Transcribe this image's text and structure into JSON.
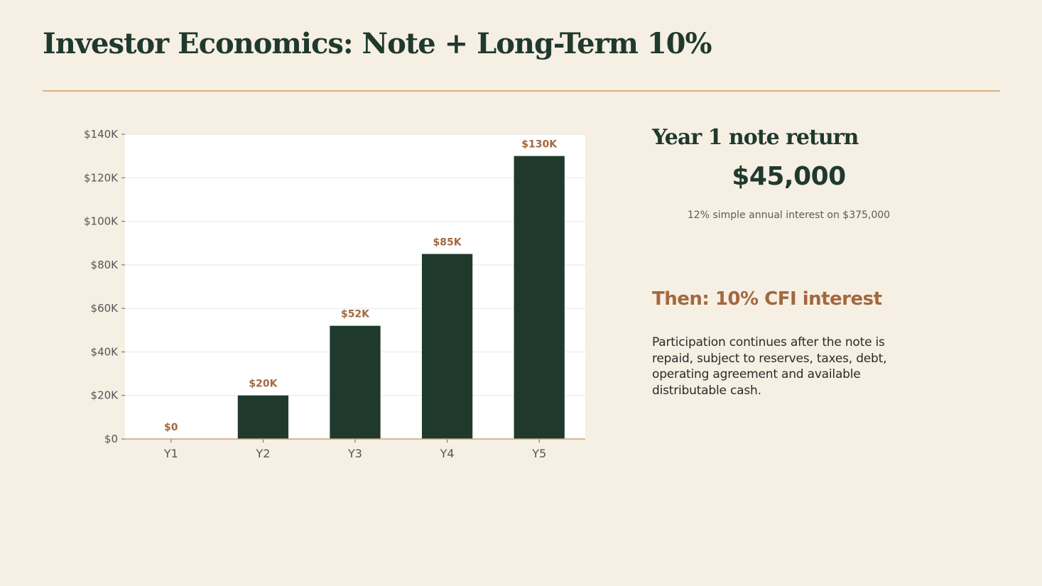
{
  "title": "Investor Economics: Note + Long-Term 10%",
  "note": {
    "heading": "Year 1 note return",
    "value": "$45,000",
    "caption": "12% simple annual interest on $375,000"
  },
  "then": {
    "heading": "Then: 10% CFI interest",
    "body": "Participation continues after the note is repaid, subject to reserves, taxes, debt, operating agreement and available distributable cash."
  },
  "colors": {
    "background": "#f6efe4",
    "bar": "#1f3a2d",
    "label": "#a3683f",
    "rule": "#d4b384"
  },
  "chart_data": {
    "type": "bar",
    "categories": [
      "Y1",
      "Y2",
      "Y3",
      "Y4",
      "Y5"
    ],
    "values": [
      0,
      20000,
      52000,
      85000,
      130000
    ],
    "data_labels": [
      "$0",
      "$20K",
      "$52K",
      "$85K",
      "$130K"
    ],
    "yticks": [
      0,
      20000,
      40000,
      60000,
      80000,
      100000,
      120000,
      140000
    ],
    "ytick_labels": [
      "$0",
      "$20K",
      "$40K",
      "$60K",
      "$80K",
      "$100K",
      "$120K",
      "$140K"
    ],
    "ylim": [
      0,
      140000
    ],
    "grid": true
  }
}
